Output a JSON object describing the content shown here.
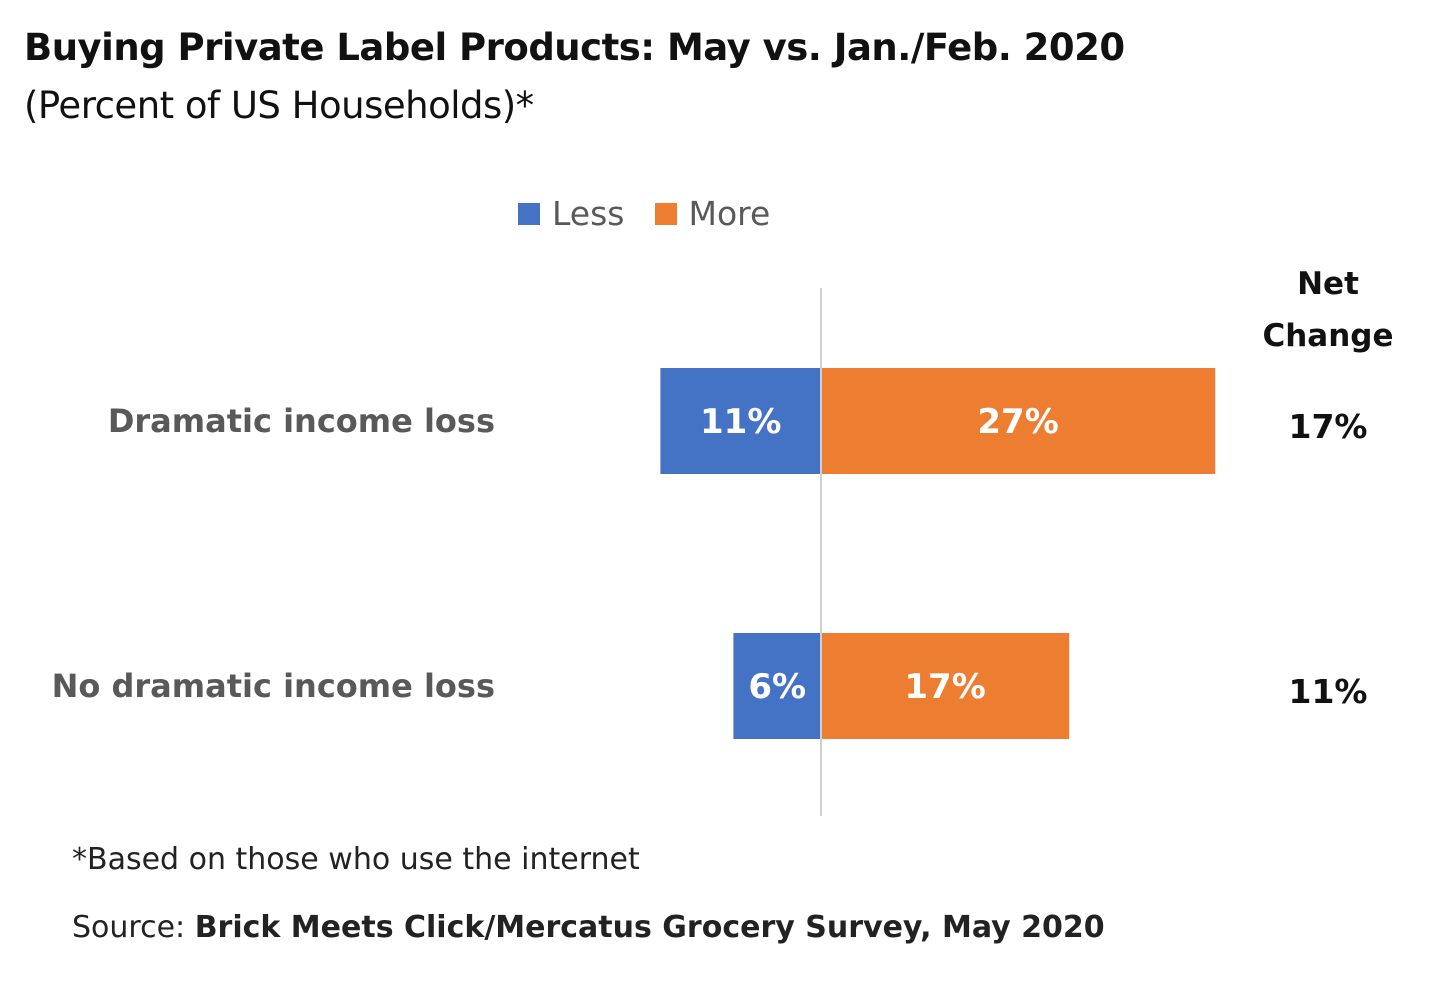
{
  "title": "Buying Private Label Products: May vs. Jan./Feb. 2020",
  "subtitle": "(Percent of US Households)*",
  "legend": [
    {
      "label": "Less",
      "color": "#4472C4"
    },
    {
      "label": "More",
      "color": "#ED7D31"
    }
  ],
  "net_change_header": [
    "Net",
    "Change"
  ],
  "chart_data": {
    "type": "bar",
    "orientation": "horizontal-diverging",
    "categories": [
      "Dramatic income loss",
      "No dramatic income loss"
    ],
    "series": [
      {
        "name": "Less",
        "values": [
          11,
          6
        ],
        "color": "#4472C4",
        "direction": "negative"
      },
      {
        "name": "More",
        "values": [
          27,
          17
        ],
        "color": "#ED7D31",
        "direction": "positive"
      }
    ],
    "data_labels": {
      "Less": [
        "11%",
        "6%"
      ],
      "More": [
        "27%",
        "17%"
      ]
    },
    "net_change": [
      "17%",
      "11%"
    ],
    "legend_position": "top",
    "grid": false
  },
  "footnote": "*Based on those who use the internet",
  "source": {
    "prefix": "Source: ",
    "text": "Brick Meets Click/Mercatus Grocery Survey, May 2020"
  }
}
